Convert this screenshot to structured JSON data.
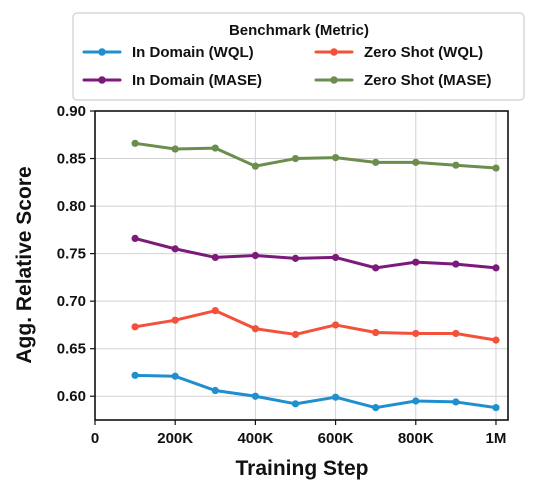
{
  "chart_data": {
    "type": "line",
    "xlabel": "Training Step",
    "ylabel": "Agg. Relative Score",
    "xlim": [
      0,
      1030000
    ],
    "ylim": [
      0.575,
      0.9
    ],
    "x_ticks": [
      0,
      200000,
      400000,
      600000,
      800000,
      1000000
    ],
    "x_tick_labels": [
      "0",
      "200K",
      "400K",
      "600K",
      "800K",
      "1M"
    ],
    "y_ticks": [
      0.6,
      0.65,
      0.7,
      0.75,
      0.8,
      0.85,
      0.9
    ],
    "y_tick_labels": [
      "0.60",
      "0.65",
      "0.70",
      "0.75",
      "0.80",
      "0.85",
      "0.90"
    ],
    "grid": true,
    "legend": {
      "title": "Benchmark (Metric)",
      "placement": "top-center, outside plot, 2 columns"
    },
    "x": [
      100000,
      200000,
      300000,
      400000,
      500000,
      600000,
      700000,
      800000,
      900000,
      1000000
    ],
    "series": [
      {
        "name": "In Domain (WQL)",
        "color": "#1f8fce",
        "values": [
          0.622,
          0.621,
          0.606,
          0.6,
          0.592,
          0.599,
          0.588,
          0.595,
          0.594,
          0.588
        ]
      },
      {
        "name": "In Domain (MASE)",
        "color": "#7b1a7b",
        "values": [
          0.766,
          0.755,
          0.746,
          0.748,
          0.745,
          0.746,
          0.735,
          0.741,
          0.739,
          0.735
        ]
      },
      {
        "name": "Zero Shot (WQL)",
        "color": "#f4513a",
        "values": [
          0.673,
          0.68,
          0.69,
          0.671,
          0.665,
          0.675,
          0.667,
          0.666,
          0.666,
          0.659
        ]
      },
      {
        "name": "Zero Shot (MASE)",
        "color": "#6b8e4e",
        "values": [
          0.866,
          0.86,
          0.861,
          0.842,
          0.85,
          0.851,
          0.846,
          0.846,
          0.843,
          0.84
        ]
      }
    ]
  }
}
